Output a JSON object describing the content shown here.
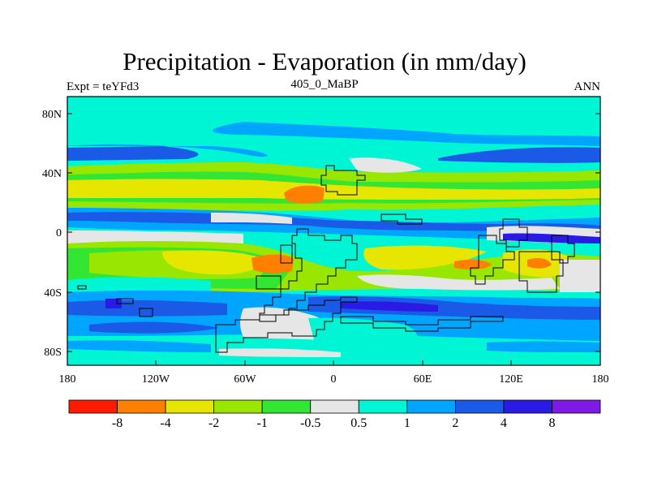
{
  "title": "Precipitation - Evaporation (in mm/day)",
  "left_label": "Expt = teYFd3",
  "center_label": "405_0_MaBP",
  "right_label": "ANN",
  "y_ticks": [
    "80N",
    "40N",
    "0",
    "40S",
    "80S"
  ],
  "x_ticks": [
    "180",
    "120W",
    "60W",
    "0",
    "60E",
    "120E",
    "180"
  ],
  "colorbar": {
    "colors": [
      "#ff1a00",
      "#ff7f00",
      "#e6e600",
      "#99e600",
      "#33e633",
      "#e6e6e6",
      "#00f5d4",
      "#00a5ff",
      "#1a5ae6",
      "#2a1ae6",
      "#7f1ae6"
    ],
    "labels": [
      "-8",
      "-4",
      "-2",
      "-1",
      "-0.5",
      "0.5",
      "1",
      "2",
      "4",
      "8"
    ]
  },
  "colors": {
    "land_outline": "#000000",
    "frame": "#000000"
  }
}
